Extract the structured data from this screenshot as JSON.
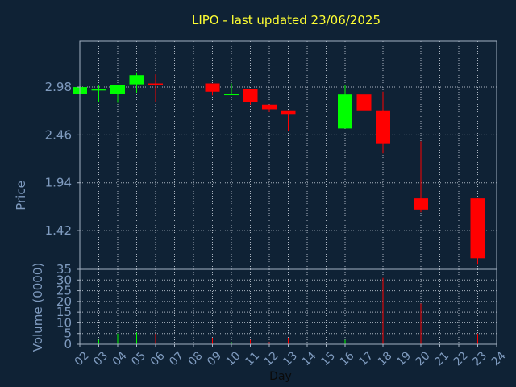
{
  "colors": {
    "background": "#0f2235",
    "axis": "#a3b1c2",
    "label": "#7f9bbf",
    "grid": "#c8d0da",
    "title": "#ffff33",
    "up": "#00ff00",
    "down": "#ff0000"
  },
  "chart_data": {
    "type": "candlestick",
    "title": "LIPO - last updated 23/06/2025",
    "xlabel": "Day",
    "grid": true,
    "price_panel": {
      "ylabel": "Price",
      "ylim": [
        1.0,
        3.48
      ],
      "yticks": [
        "2.98",
        "2.46",
        "1.94",
        "1.42"
      ]
    },
    "volume_panel": {
      "ylabel": "Volume (0000)",
      "ylim": [
        0,
        35
      ],
      "yticks": [
        "35",
        "30",
        "25",
        "20",
        "15",
        "10",
        "5",
        "0"
      ]
    },
    "xticks": [
      "02",
      "03",
      "04",
      "05",
      "06",
      "07",
      "08",
      "09",
      "10",
      "11",
      "12",
      "13",
      "14",
      "15",
      "16",
      "17",
      "18",
      "19",
      "20",
      "21",
      "22",
      "23",
      "24"
    ],
    "candles": [
      {
        "day": "02",
        "open": 2.91,
        "high": 2.99,
        "low": 2.91,
        "close": 2.98,
        "volume": 1
      },
      {
        "day": "03",
        "open": 2.95,
        "high": 3.0,
        "low": 2.82,
        "close": 2.96,
        "volume": 2
      },
      {
        "day": "04",
        "open": 2.91,
        "high": 3.0,
        "low": 2.81,
        "close": 3.0,
        "volume": 5
      },
      {
        "day": "05",
        "open": 3.01,
        "high": 3.14,
        "low": 2.92,
        "close": 3.11,
        "volume": 5.5
      },
      {
        "day": "06",
        "open": 3.02,
        "high": 3.12,
        "low": 2.82,
        "close": 3.01,
        "volume": 5
      },
      {
        "day": "09",
        "open": 3.02,
        "high": 3.02,
        "low": 2.89,
        "close": 2.93,
        "volume": 3
      },
      {
        "day": "10",
        "open": 2.9,
        "high": 3.02,
        "low": 2.9,
        "close": 2.91,
        "volume": 1
      },
      {
        "day": "11",
        "open": 2.96,
        "high": 2.96,
        "low": 2.79,
        "close": 2.82,
        "volume": 2
      },
      {
        "day": "12",
        "open": 2.79,
        "high": 2.79,
        "low": 2.71,
        "close": 2.74,
        "volume": 1
      },
      {
        "day": "13",
        "open": 2.72,
        "high": 2.72,
        "low": 2.5,
        "close": 2.68,
        "volume": 3
      },
      {
        "day": "16",
        "open": 2.53,
        "high": 3.0,
        "low": 2.53,
        "close": 2.9,
        "volume": 2
      },
      {
        "day": "17",
        "open": 2.9,
        "high": 2.9,
        "low": 2.62,
        "close": 2.72,
        "volume": 4
      },
      {
        "day": "18",
        "open": 2.72,
        "high": 2.93,
        "low": 2.26,
        "close": 2.37,
        "volume": 31
      },
      {
        "day": "20",
        "open": 1.77,
        "high": 2.39,
        "low": 1.62,
        "close": 1.65,
        "volume": 19
      },
      {
        "day": "23",
        "open": 1.77,
        "high": 1.77,
        "low": 1.05,
        "close": 1.12,
        "volume": 5
      }
    ]
  }
}
